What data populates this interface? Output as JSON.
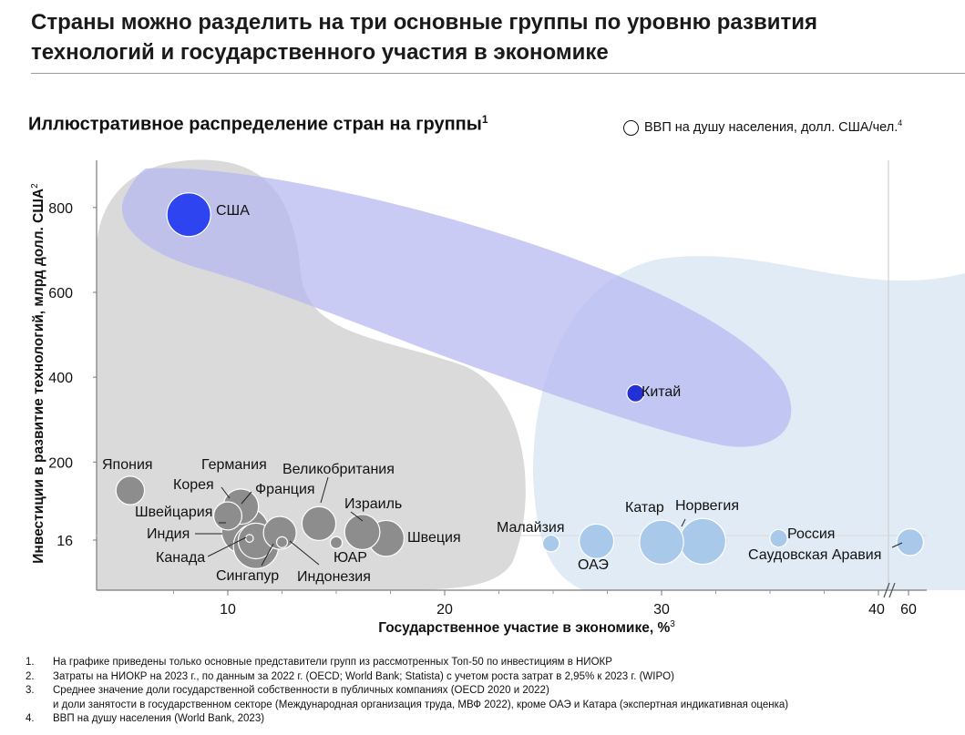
{
  "header": {
    "title": "Страны можно разделить на три основные группы по уровню развития технологий и государственного участия в экономике"
  },
  "subtitle": {
    "text": "Иллюстративное распределение стран на группы",
    "sup": "1"
  },
  "legend": {
    "text": "ВВП на душу населения, долл. США/чел.",
    "sup": "4"
  },
  "chart_data": {
    "type": "scatter",
    "variant": "bubble",
    "title": "Иллюстративное распределение стран на группы",
    "xlabel": "Государственное участие в экономике, %",
    "xlabel_sup": "3",
    "ylabel": "Инвестиции в развитие технологий, млрд долл. США",
    "ylabel_sup": "2",
    "x_ticks": [
      {
        "value": 10,
        "label": "10"
      },
      {
        "value": 20,
        "label": "20"
      },
      {
        "value": 30,
        "label": "30"
      },
      {
        "value": 40,
        "label": "40"
      },
      {
        "value": 60,
        "label": "60"
      }
    ],
    "y_ticks": [
      {
        "value": 16,
        "label": "16"
      },
      {
        "value": 200,
        "label": "200"
      },
      {
        "value": 400,
        "label": "400"
      },
      {
        "value": 600,
        "label": "600"
      },
      {
        "value": 800,
        "label": "800"
      }
    ],
    "x_axis_break": "40–60",
    "grid": false,
    "legend_position": "top-right",
    "groups": [
      {
        "color": "#d3d3d3",
        "countries": [
          "Япония",
          "Корея",
          "Швейцария",
          "Германия",
          "Индия",
          "Канада",
          "Сингапур",
          "Франция",
          "Индонезия",
          "Великобритания",
          "ЮАР",
          "Израиль",
          "Швеция",
          "США"
        ]
      },
      {
        "color": "#b7b8ef",
        "countries": [
          "США",
          "Китай"
        ]
      },
      {
        "color": "#cfe0f2",
        "countries": [
          "Малайзия",
          "ОАЭ",
          "Катар",
          "Норвегия",
          "Россия",
          "Саудовская Аравия",
          "Китай"
        ]
      }
    ],
    "points": [
      {
        "name": "США",
        "x": 8.2,
        "y": 783,
        "gdp_pc": 80000,
        "color": "#2d44f0"
      },
      {
        "name": "Китай",
        "x": 28.8,
        "y": 362,
        "gdp_pc": 12600,
        "color": "#2230d6"
      },
      {
        "name": "Япония",
        "x": 5.5,
        "y": 133,
        "gdp_pc": 34000,
        "color": "#8d8d8d"
      },
      {
        "name": "Корея",
        "x": 10.0,
        "y": 73,
        "gdp_pc": 33000,
        "color": "#8d8d8d"
      },
      {
        "name": "Германия",
        "x": 10.6,
        "y": 95,
        "gdp_pc": 52000,
        "color": "#8d8d8d"
      },
      {
        "name": "Швейцария",
        "x": 10.8,
        "y": 38,
        "gdp_pc": 93000,
        "color": "#8d8d8d"
      },
      {
        "name": "Индия",
        "x": 11.0,
        "y": 20,
        "gdp_pc": 2500,
        "color": "#8d8d8d"
      },
      {
        "name": "Канада",
        "x": 11.3,
        "y": 14,
        "gdp_pc": 53000,
        "color": "#8d8d8d"
      },
      {
        "name": "Сингапур",
        "x": 11.3,
        "y": 2,
        "gdp_pc": 85000,
        "color": "#8d8d8d"
      },
      {
        "name": "Франция",
        "x": 12.4,
        "y": 33,
        "gdp_pc": 45000,
        "color": "#8d8d8d"
      },
      {
        "name": "Индонезия",
        "x": 12.5,
        "y": 11,
        "gdp_pc": 4900,
        "color": "#8d8d8d"
      },
      {
        "name": "Великобритания",
        "x": 14.2,
        "y": 55,
        "gdp_pc": 48000,
        "color": "#8d8d8d"
      },
      {
        "name": "ЮАР",
        "x": 15.0,
        "y": 10,
        "gdp_pc": 6000,
        "color": "#8d8d8d"
      },
      {
        "name": "Израиль",
        "x": 16.2,
        "y": 35,
        "gdp_pc": 52000,
        "color": "#8d8d8d"
      },
      {
        "name": "Швеция",
        "x": 17.3,
        "y": 20,
        "gdp_pc": 54000,
        "color": "#8d8d8d"
      },
      {
        "name": "Малайзия",
        "x": 24.9,
        "y": 8,
        "gdp_pc": 11700,
        "color": "#a9c9ea"
      },
      {
        "name": "ОАЭ",
        "x": 27.0,
        "y": 13,
        "gdp_pc": 50000,
        "color": "#a9c9ea"
      },
      {
        "name": "Катар",
        "x": 30.0,
        "y": 11,
        "gdp_pc": 81000,
        "color": "#a9c9ea"
      },
      {
        "name": "Норвегия",
        "x": 31.9,
        "y": 13,
        "gdp_pc": 88000,
        "color": "#a9c9ea"
      },
      {
        "name": "Россия",
        "x": 35.4,
        "y": 20,
        "gdp_pc": 13000,
        "color": "#a9c9ea"
      },
      {
        "name": "Саудовская Аравия",
        "x": 61,
        "y": 11,
        "gdp_pc": 30000,
        "color": "#a9c9ea"
      }
    ]
  },
  "footnotes": [
    {
      "num": "1.",
      "text": "На графике приведены только основные представители групп из рассмотренных Топ-50 по инвестициям в НИОКР"
    },
    {
      "num": "2.",
      "text": "Затраты на НИОКР на 2023 г., по данным за 2022 г. (OECD; World Bank; Statista) с учетом роста затрат в 2,95% к 2023 г. (WIPO)"
    },
    {
      "num": "3.",
      "text": "Среднее значение доли государственной собственности в публичных компаниях (OECD 2020 и 2022)"
    },
    {
      "num": "",
      "text": "и доли занятости в государственном секторе (Международная организация труда, МВФ 2022), кроме ОАЭ и Катара (экспертная индикативная оценка)"
    },
    {
      "num": "4.",
      "text": "ВВП на душу населения (World Bank, 2023)"
    }
  ]
}
